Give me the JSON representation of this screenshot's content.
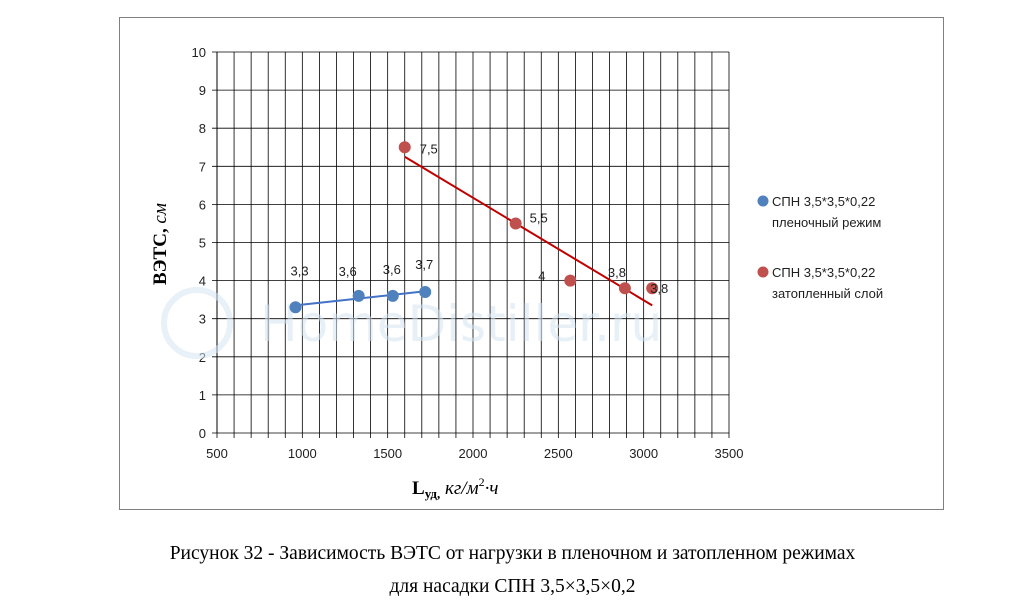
{
  "chart_data": {
    "type": "scatter",
    "x_ticks": [
      "500",
      "1000",
      "1500",
      "2000",
      "2500",
      "3000",
      "3500"
    ],
    "y_ticks": [
      "0",
      "1",
      "2",
      "3",
      "4",
      "5",
      "6",
      "7",
      "8",
      "9",
      "10"
    ],
    "xlim": [
      500,
      3500
    ],
    "ylim": [
      0,
      10
    ],
    "x_minor_step": 100,
    "y_major_step": 1,
    "grid": true,
    "xlabel_main": "L",
    "xlabel_sub": "уд,",
    "xlabel_unit": "кг/м",
    "xlabel_sup": "2",
    "xlabel_tail": "·ч",
    "ylabel_main": "ВЭТС,",
    "ylabel_unit": "см",
    "legend_position": "right",
    "series": [
      {
        "name_line1": "СПН 3,5*3,5*0,22",
        "name_line2": "пленочный режим",
        "color": "#4f81bd",
        "trend_color": "#4472c4",
        "points": [
          {
            "x": 960,
            "y": 3.3,
            "label": "3,3"
          },
          {
            "x": 1330,
            "y": 3.6,
            "label": "3,6"
          },
          {
            "x": 1530,
            "y": 3.6,
            "label": "3,6"
          },
          {
            "x": 1720,
            "y": 3.7,
            "label": "3,7"
          }
        ],
        "trend": {
          "x0": 960,
          "y0": 3.35,
          "x1": 1720,
          "y1": 3.72
        }
      },
      {
        "name_line1": "СПН 3,5*3,5*0,22",
        "name_line2": "затопленный слой",
        "color": "#c0504d",
        "trend_color": "#c00000",
        "points": [
          {
            "x": 1600,
            "y": 7.5,
            "label": "7,5"
          },
          {
            "x": 2250,
            "y": 5.5,
            "label": "5,5"
          },
          {
            "x": 2570,
            "y": 4.0,
            "label": "4"
          },
          {
            "x": 2890,
            "y": 3.8,
            "label": "3,8"
          },
          {
            "x": 3050,
            "y": 3.8,
            "label": "3,8"
          }
        ],
        "trend": {
          "x0": 1600,
          "y0": 7.25,
          "x1": 3050,
          "y1": 3.35
        }
      }
    ]
  },
  "watermark": "HomeDistiller.ru",
  "caption": {
    "line1": "Рисунок 32 - Зависимость ВЭТС от нагрузки в пленочном и затопленном режимах",
    "line2": "для насадки СПН 3,5×3,5×0,2"
  }
}
